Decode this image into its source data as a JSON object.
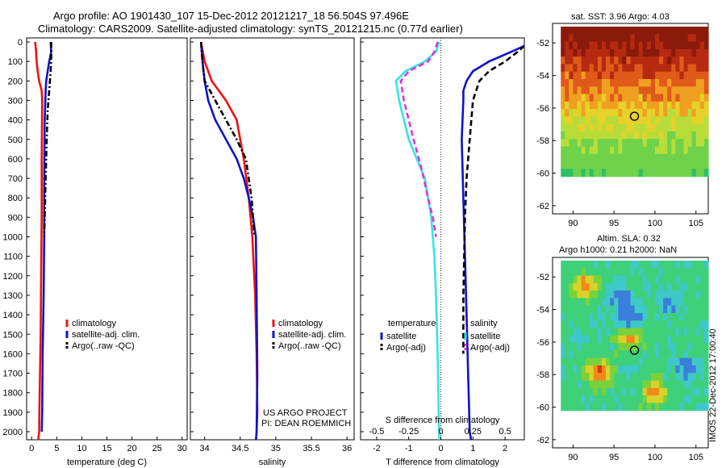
{
  "header": {
    "line1": "Argo profile: AO 1901430_107 15-Dec-2012 20121217_18 56.504S 97.496E",
    "line2": "Climatology: CARS2009. Satellite-adjusted climatology: synTS_20121215.nc (0.77d earlier)"
  },
  "credits": {
    "project": "US ARGO PROJECT",
    "pi": "PI: DEAN ROEMMICH"
  },
  "stamp": "IMOS 22-Dec-2012 17:00:40",
  "colors": {
    "climatology": "#ee1111",
    "satellite": "#1111cc",
    "argo": "#000000",
    "s_satellite": "#33e5e5",
    "s_argo": "#e033e0"
  },
  "chart_data": [
    {
      "type": "line",
      "id": "temperature",
      "xlabel": "temperature (deg C)",
      "ylabel": "",
      "xlim": [
        -1,
        31
      ],
      "ylim": [
        2050,
        0
      ],
      "xticks": [
        0,
        5,
        10,
        15,
        20,
        25,
        30
      ],
      "yticks": [
        0,
        100,
        200,
        300,
        400,
        500,
        600,
        700,
        800,
        900,
        1000,
        1100,
        1200,
        1300,
        1400,
        1500,
        1600,
        1700,
        1800,
        1900,
        2000
      ],
      "legend": [
        "climatology",
        "satellite-adj. clim.",
        "Argo(..raw -QC)"
      ],
      "legend_position": "lower-middle",
      "series": [
        {
          "name": "climatology",
          "color": "#ee1111",
          "style": "solid",
          "x": [
            0.7,
            0.9,
            1.0,
            1.2,
            1.5,
            2.0,
            2.1,
            2.0,
            2.0,
            1.9,
            1.8,
            1.6,
            1.5,
            1.3
          ],
          "y": [
            0,
            50,
            100,
            150,
            200,
            250,
            300,
            600,
            900,
            1200,
            1500,
            1800,
            2000,
            2050
          ]
        },
        {
          "name": "satellite-adj. clim.",
          "color": "#1111cc",
          "style": "solid",
          "x": [
            3.8,
            3.9,
            3.5,
            3.2,
            2.9,
            2.8,
            2.6,
            2.5,
            2.5,
            2.4,
            2.2,
            2.1,
            2.0
          ],
          "y": [
            0,
            50,
            100,
            150,
            200,
            250,
            400,
            700,
            1000,
            1300,
            1600,
            1900,
            2000
          ]
        },
        {
          "name": "Argo(..raw -QC)",
          "color": "#000000",
          "style": "dashdot",
          "x": [
            3.9,
            3.9,
            3.8,
            3.5,
            3.2,
            3.0,
            2.8,
            2.6,
            2.5
          ],
          "y": [
            0,
            80,
            150,
            250,
            350,
            500,
            700,
            900,
            1000
          ]
        }
      ]
    },
    {
      "type": "line",
      "id": "salinity",
      "xlabel": "salinity",
      "xlim": [
        33.8,
        36.1
      ],
      "ylim": [
        2050,
        0
      ],
      "xticks": [
        34,
        34.5,
        35,
        35.5,
        36
      ],
      "legend": [
        "climatology",
        "satellite-adj. clim.",
        "Argo(..raw -QC)"
      ],
      "legend_position": "lower-middle",
      "series": [
        {
          "name": "climatology",
          "color": "#ee1111",
          "style": "solid",
          "x": [
            33.95,
            34.0,
            34.1,
            34.3,
            34.45,
            34.55,
            34.62,
            34.67,
            34.71,
            34.73,
            34.74,
            34.73,
            34.72
          ],
          "y": [
            0,
            100,
            200,
            300,
            400,
            600,
            800,
            1000,
            1300,
            1600,
            1900,
            2000,
            2050
          ]
        },
        {
          "name": "satellite-adj. clim.",
          "color": "#1111cc",
          "style": "solid",
          "x": [
            33.95,
            33.97,
            34.0,
            34.05,
            34.15,
            34.3,
            34.45,
            34.55,
            34.62,
            34.68,
            34.72,
            34.73,
            34.74,
            34.73,
            34.72
          ],
          "y": [
            0,
            100,
            200,
            300,
            400,
            500,
            600,
            700,
            800,
            900,
            1000,
            1300,
            1700,
            2000,
            2050
          ]
        },
        {
          "name": "Argo(..raw -QC)",
          "color": "#000000",
          "style": "dashdot",
          "x": [
            33.95,
            33.97,
            34.0,
            34.15,
            34.3,
            34.45,
            34.58,
            34.66,
            34.7
          ],
          "y": [
            0,
            100,
            200,
            300,
            400,
            500,
            600,
            800,
            1000
          ]
        }
      ]
    },
    {
      "type": "line",
      "id": "difference",
      "xlabel": "T difference from climatology",
      "xlabel2": "S difference from climatology",
      "xlim": [
        -2.5,
        2.6
      ],
      "ylim": [
        2050,
        0
      ],
      "xticks": [
        -2,
        -1,
        0,
        1,
        2
      ],
      "xticks_top": [
        -0.5,
        -0.25,
        0,
        0.25,
        0.5
      ],
      "legend_headers": [
        "temperature",
        "salinity"
      ],
      "legend": [
        "satellite",
        "Argo(-adj)",
        "satellite",
        "Argo(-adj)"
      ],
      "legend_position": "lower-middle",
      "series": [
        {
          "name": "temperature satellite",
          "color": "#1111cc",
          "style": "solid",
          "x": [
            2.6,
            2.2,
            1.5,
            1.0,
            0.8,
            0.7,
            0.7,
            0.65,
            0.7,
            0.75,
            0.8,
            0.85,
            0.9,
            0.95
          ],
          "y": [
            20,
            50,
            100,
            150,
            200,
            250,
            300,
            500,
            800,
            1100,
            1400,
            1700,
            2000,
            2050
          ]
        },
        {
          "name": "temperature Argo(-adj)",
          "color": "#000000",
          "style": "dashed",
          "x": [
            2.6,
            2.4,
            2.0,
            1.5,
            1.2,
            1.0,
            0.9,
            0.8,
            0.75,
            0.7,
            0.7
          ],
          "y": [
            20,
            50,
            100,
            150,
            200,
            300,
            500,
            700,
            900,
            1300,
            1600
          ]
        },
        {
          "name": "salinity satellite",
          "color": "#33e5e5",
          "style": "solid",
          "x": [
            -0.05,
            -0.15,
            -0.5,
            -1.1,
            -1.4,
            -1.3,
            -1.15,
            -1.0,
            -0.75,
            -0.5,
            -0.3,
            -0.2,
            -0.15,
            -0.1,
            -0.05
          ],
          "y": [
            0,
            50,
            100,
            150,
            200,
            300,
            400,
            500,
            600,
            700,
            900,
            1100,
            1300,
            1600,
            2050
          ]
        },
        {
          "name": "salinity Argo(-adj)",
          "color": "#e033e0",
          "style": "dashed",
          "x": [
            -0.1,
            -0.2,
            -0.4,
            -1.0,
            -1.25,
            -1.15,
            -1.0,
            -0.85,
            -0.6,
            -0.4,
            -0.25,
            -0.15
          ],
          "y": [
            0,
            50,
            100,
            150,
            200,
            300,
            400,
            500,
            650,
            800,
            900,
            1000
          ]
        }
      ]
    },
    {
      "type": "heatmap",
      "id": "sst_map",
      "title": "sat. SST: 3.96 Argo: 4.03",
      "xlim": [
        87.5,
        106.5
      ],
      "ylim": [
        -62.5,
        -50.8
      ],
      "xticks": [
        90,
        95,
        100,
        105
      ],
      "yticks": [
        -52,
        -54,
        -56,
        -58,
        -60,
        -62
      ],
      "marker": {
        "lon": 97.496,
        "lat": -56.504
      }
    },
    {
      "type": "heatmap",
      "id": "sla_map",
      "title": "Altim. SLA: 0.32",
      "subtitle": "Argo h1000: 0.21 h2000: NaN",
      "xlim": [
        87.5,
        106.5
      ],
      "ylim": [
        -62.5,
        -50.8
      ],
      "xticks": [
        90,
        95,
        100,
        105
      ],
      "yticks": [
        -52,
        -54,
        -56,
        -58,
        -60,
        -62
      ],
      "marker": {
        "lon": 97.496,
        "lat": -56.504
      }
    }
  ]
}
